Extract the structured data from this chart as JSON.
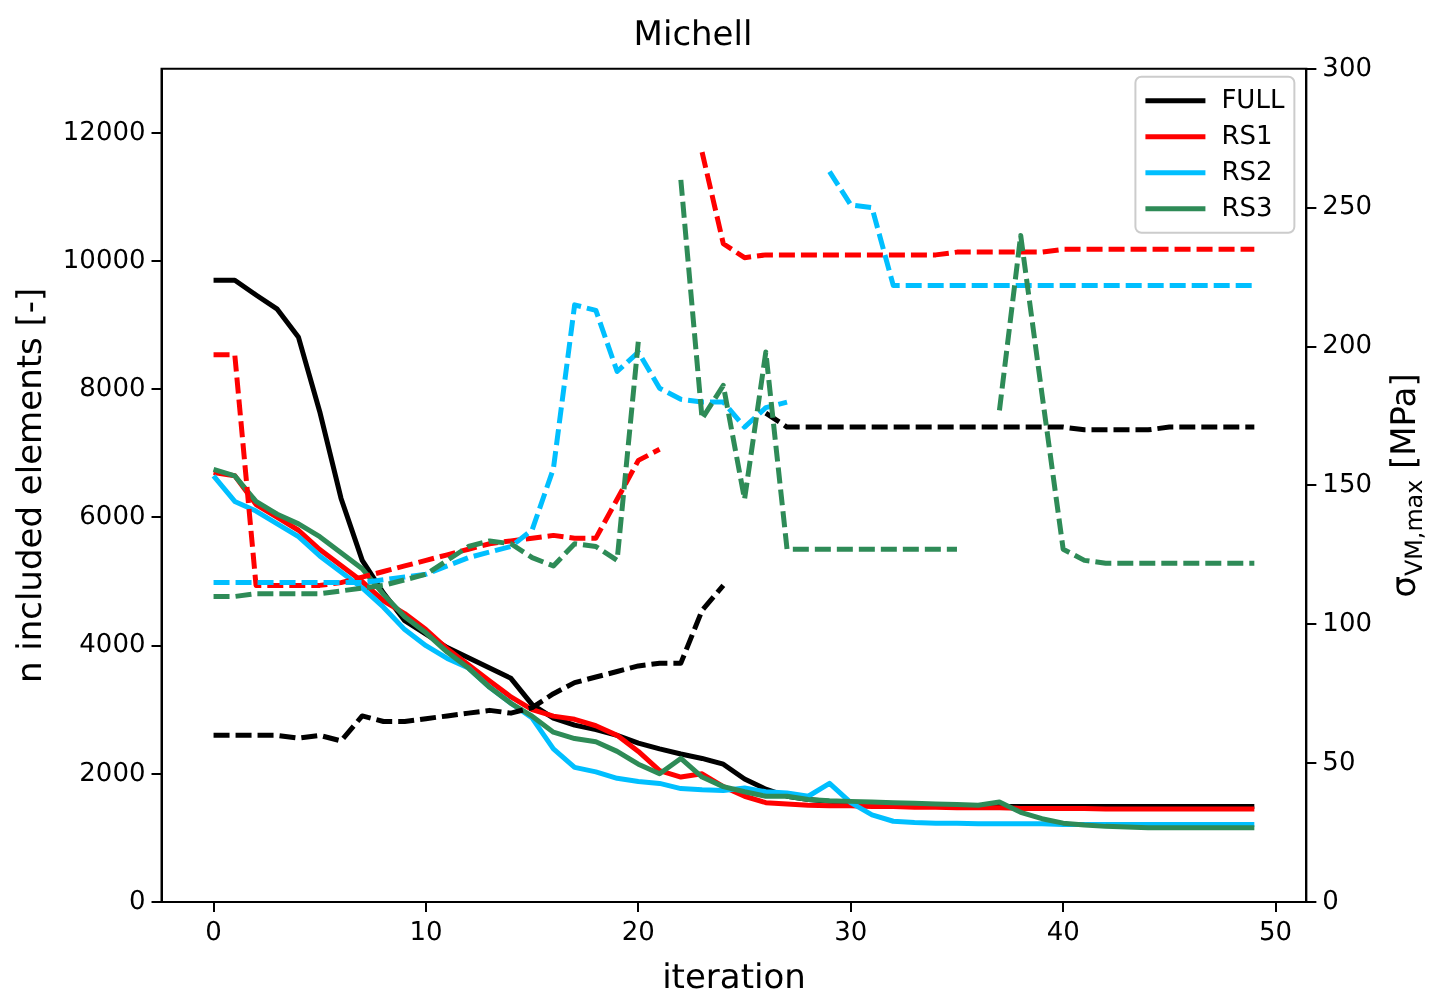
{
  "chart_data": {
    "type": "line",
    "title": "Michell",
    "xlabel": "iteration",
    "ylabel": "n included elements [-]",
    "y2label": "σ$_{VM,max}$ [MPa]",
    "x": [
      0,
      1,
      2,
      3,
      4,
      5,
      6,
      7,
      8,
      9,
      10,
      11,
      12,
      13,
      14,
      15,
      16,
      17,
      18,
      19,
      20,
      21,
      22,
      23,
      24,
      25,
      26,
      27,
      28,
      29,
      30,
      31,
      32,
      33,
      34,
      35,
      36,
      37,
      38,
      39,
      40,
      41,
      42,
      43,
      44,
      45,
      46,
      47,
      48,
      49
    ],
    "xlim": [
      -2.45,
      51.45
    ],
    "xticks": [
      0,
      10,
      20,
      30,
      40,
      50
    ],
    "ylim": [
      0,
      13000
    ],
    "yticks": [
      0,
      2000,
      4000,
      6000,
      8000,
      10000,
      12000
    ],
    "y2lim": [
      0,
      300
    ],
    "y2ticks": [
      0,
      50,
      100,
      150,
      200,
      250,
      300
    ],
    "legend": "top right",
    "marker": "none",
    "series": [
      {
        "name": "FULL",
        "color": "#000000",
        "line_style": "solid",
        "values": [
          9700,
          9700,
          9470,
          9250,
          8810,
          7650,
          6300,
          5330,
          4820,
          4390,
          4180,
          3970,
          3810,
          3650,
          3490,
          3080,
          2870,
          2760,
          2690,
          2600,
          2480,
          2390,
          2310,
          2240,
          2150,
          1920,
          1760,
          1650,
          1600,
          1570,
          1550,
          1540,
          1530,
          1520,
          1510,
          1500,
          1500,
          1490,
          1490,
          1490,
          1490,
          1490,
          1490,
          1490,
          1490,
          1490,
          1490,
          1490,
          1490,
          1490
        ]
      },
      {
        "name": "RS1",
        "color": "#ff0000",
        "line_style": "solid",
        "values": [
          6700,
          6650,
          6200,
          6000,
          5800,
          5500,
          5250,
          5000,
          4700,
          4500,
          4250,
          3950,
          3700,
          3450,
          3200,
          3000,
          2900,
          2850,
          2750,
          2600,
          2350,
          2050,
          1950,
          2000,
          1800,
          1650,
          1550,
          1530,
          1510,
          1500,
          1500,
          1490,
          1490,
          1480,
          1480,
          1470,
          1470,
          1470,
          1460,
          1460,
          1460,
          1460,
          1450,
          1450,
          1450,
          1450,
          1450,
          1450,
          1450,
          1450
        ]
      },
      {
        "name": "RS2",
        "color": "#00bfff",
        "line_style": "solid",
        "values": [
          6650,
          6250,
          6100,
          5900,
          5700,
          5400,
          5150,
          4900,
          4600,
          4250,
          4000,
          3800,
          3650,
          3350,
          3100,
          2870,
          2390,
          2100,
          2030,
          1930,
          1880,
          1850,
          1770,
          1750,
          1740,
          1780,
          1720,
          1700,
          1650,
          1850,
          1550,
          1360,
          1260,
          1240,
          1230,
          1230,
          1220,
          1220,
          1220,
          1220,
          1210,
          1210,
          1210,
          1210,
          1210,
          1210,
          1210,
          1210,
          1210,
          1210
        ]
      },
      {
        "name": "RS3",
        "color": "#2e8b57",
        "line_style": "solid",
        "values": [
          6750,
          6650,
          6250,
          6050,
          5900,
          5700,
          5450,
          5200,
          4800,
          4450,
          4200,
          3900,
          3650,
          3350,
          3100,
          2900,
          2650,
          2550,
          2500,
          2350,
          2150,
          2000,
          2240,
          1950,
          1800,
          1720,
          1650,
          1650,
          1600,
          1580,
          1570,
          1560,
          1550,
          1540,
          1530,
          1520,
          1510,
          1560,
          1400,
          1300,
          1230,
          1200,
          1180,
          1170,
          1160,
          1160,
          1160,
          1160,
          1160,
          1160
        ]
      },
      {
        "color": "#000000",
        "line_style": "dashed",
        "axis": "y2",
        "values": [
          60,
          60,
          60,
          60,
          59,
          60,
          58,
          67,
          65,
          65,
          66,
          67,
          68,
          69,
          68,
          70,
          75,
          79,
          81,
          83,
          85,
          86,
          86,
          105,
          114,
          null,
          176,
          171,
          171,
          171,
          171,
          171,
          171,
          171,
          171,
          171,
          171,
          171,
          171,
          171,
          171,
          170,
          170,
          170,
          170,
          171,
          171,
          171,
          171,
          171
        ]
      },
      {
        "color": "#ff0000",
        "line_style": "dashed",
        "axis": "y2",
        "values": [
          197,
          197,
          114,
          114,
          114,
          114,
          115,
          117,
          119,
          121,
          123,
          125,
          127,
          129,
          130,
          131,
          132,
          131,
          131,
          145,
          159,
          163,
          null,
          270,
          237,
          232,
          233,
          233,
          233,
          233,
          233,
          233,
          233,
          233,
          233,
          234,
          234,
          234,
          234,
          234,
          235,
          235,
          235,
          235,
          235,
          235,
          235,
          235,
          235,
          235
        ]
      },
      {
        "color": "#00bfff",
        "line_style": "dashed",
        "axis": "y2",
        "values": [
          115,
          115,
          115,
          115,
          115,
          115,
          115,
          115,
          116,
          117,
          118,
          121,
          124,
          126,
          128,
          134,
          156,
          215,
          213,
          191,
          198,
          185,
          181,
          180,
          180,
          171,
          178,
          180,
          null,
          263,
          251,
          250,
          222,
          222,
          222,
          222,
          222,
          222,
          222,
          222,
          222,
          222,
          222,
          222,
          222,
          222,
          222,
          222,
          222,
          222
        ]
      },
      {
        "color": "#2e8b57",
        "line_style": "dashed",
        "axis": "y2",
        "values": [
          110,
          110,
          111,
          111,
          111,
          111,
          112,
          113,
          114,
          116,
          118,
          123,
          128,
          130,
          129,
          124,
          121,
          129,
          128,
          123,
          202,
          null,
          260,
          174,
          186,
          145,
          198,
          127,
          127,
          127,
          127,
          127,
          127,
          127,
          127,
          127,
          null,
          177,
          240,
          183,
          127,
          123,
          122,
          122,
          122,
          122,
          122,
          122,
          122,
          122
        ]
      }
    ]
  }
}
